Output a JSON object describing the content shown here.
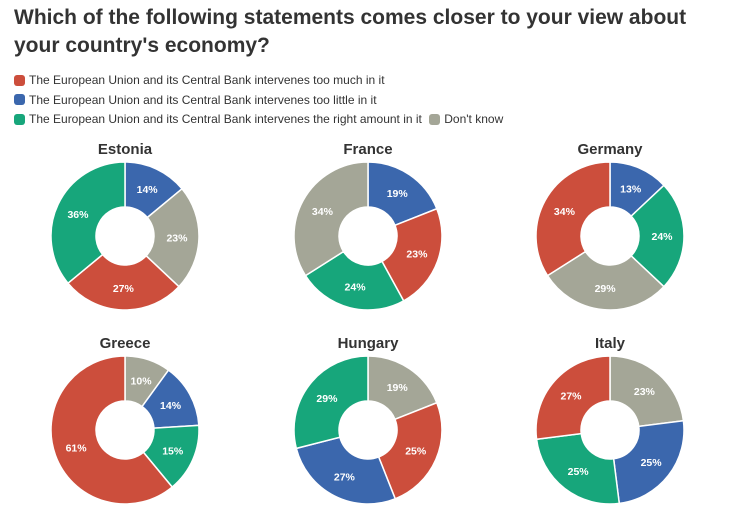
{
  "title": "Which of the following statements comes closer to your view about your country's economy?",
  "legend": [
    {
      "label": "The European Union and its Central Bank intervenes too much in it",
      "color": "#cc4e3c"
    },
    {
      "label": "The European Union and its Central Bank intervenes too little in it",
      "color": "#3b67ad"
    },
    {
      "label": "The European Union and its Central Bank intervenes the right amount in it",
      "color": "#17a67b"
    },
    {
      "label": "Don't know",
      "color": "#a4a697"
    }
  ],
  "chart_data": [
    {
      "type": "pie",
      "title": "Estonia",
      "slices": [
        {
          "category": "too little",
          "value": 14,
          "label": "14%",
          "color": "#3b67ad"
        },
        {
          "category": "don't know",
          "value": 23,
          "label": "23%",
          "color": "#a4a697"
        },
        {
          "category": "too much",
          "value": 27,
          "label": "27%",
          "color": "#cc4e3c"
        },
        {
          "category": "right amount",
          "value": 36,
          "label": "36%",
          "color": "#17a67b"
        }
      ]
    },
    {
      "type": "pie",
      "title": "France",
      "slices": [
        {
          "category": "too little",
          "value": 19,
          "label": "19%",
          "color": "#3b67ad"
        },
        {
          "category": "too much",
          "value": 23,
          "label": "23%",
          "color": "#cc4e3c"
        },
        {
          "category": "right amount",
          "value": 24,
          "label": "24%",
          "color": "#17a67b"
        },
        {
          "category": "don't know",
          "value": 34,
          "label": "34%",
          "color": "#a4a697"
        }
      ]
    },
    {
      "type": "pie",
      "title": "Germany",
      "slices": [
        {
          "category": "too little",
          "value": 13,
          "label": "13%",
          "color": "#3b67ad"
        },
        {
          "category": "right amount",
          "value": 24,
          "label": "24%",
          "color": "#17a67b"
        },
        {
          "category": "don't know",
          "value": 29,
          "label": "29%",
          "color": "#a4a697"
        },
        {
          "category": "too much",
          "value": 34,
          "label": "34%",
          "color": "#cc4e3c"
        }
      ]
    },
    {
      "type": "pie",
      "title": "Greece",
      "slices": [
        {
          "category": "don't know",
          "value": 10,
          "label": "10%",
          "color": "#a4a697"
        },
        {
          "category": "too little",
          "value": 14,
          "label": "14%",
          "color": "#3b67ad"
        },
        {
          "category": "right amount",
          "value": 15,
          "label": "15%",
          "color": "#17a67b"
        },
        {
          "category": "too much",
          "value": 61,
          "label": "61%",
          "color": "#cc4e3c"
        }
      ]
    },
    {
      "type": "pie",
      "title": "Hungary",
      "slices": [
        {
          "category": "don't know",
          "value": 19,
          "label": "19%",
          "color": "#a4a697"
        },
        {
          "category": "too much",
          "value": 25,
          "label": "25%",
          "color": "#cc4e3c"
        },
        {
          "category": "too little",
          "value": 27,
          "label": "27%",
          "color": "#3b67ad"
        },
        {
          "category": "right amount",
          "value": 29,
          "label": "29%",
          "color": "#17a67b"
        }
      ]
    },
    {
      "type": "pie",
      "title": "Italy",
      "slices": [
        {
          "category": "don't know",
          "value": 23,
          "label": "23%",
          "color": "#a4a697"
        },
        {
          "category": "too little",
          "value": 25,
          "label": "25%",
          "color": "#3b67ad"
        },
        {
          "category": "right amount",
          "value": 25,
          "label": "25%",
          "color": "#17a67b"
        },
        {
          "category": "too much",
          "value": 27,
          "label": "27%",
          "color": "#cc4e3c"
        }
      ]
    }
  ]
}
